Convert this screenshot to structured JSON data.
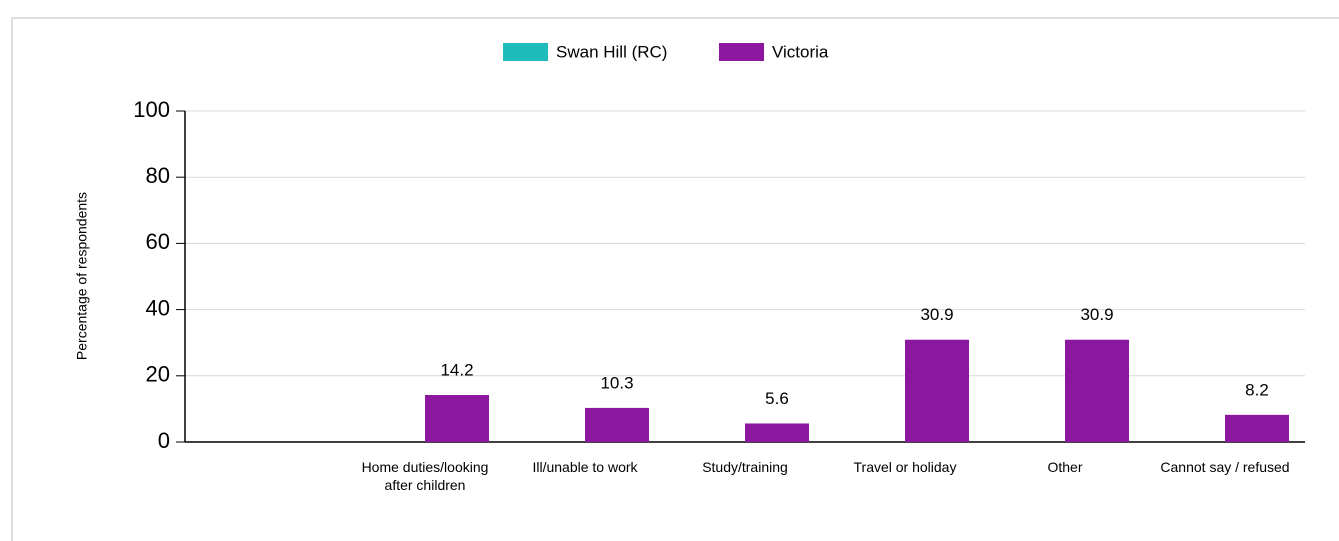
{
  "chart_data": {
    "type": "bar",
    "categories": [
      null,
      "Home duties/looking after children",
      "Ill/unable to work",
      "Study/training",
      "Travel or holiday",
      "Other",
      "Cannot say / refused"
    ],
    "series": [
      {
        "name": "Swan Hill (RC)",
        "color": "#1fbcbc",
        "values": [
          null,
          null,
          null,
          null,
          null,
          null,
          null
        ]
      },
      {
        "name": "Victoria",
        "color": "#8b179f",
        "values": [
          null,
          14.2,
          10.3,
          5.6,
          30.9,
          30.9,
          8.2
        ]
      }
    ],
    "ylabel": "Percentage of respondents",
    "ylim": [
      0,
      100
    ],
    "yticks": [
      0,
      20,
      40,
      60,
      80,
      100
    ],
    "grid": true,
    "legend": "top"
  }
}
